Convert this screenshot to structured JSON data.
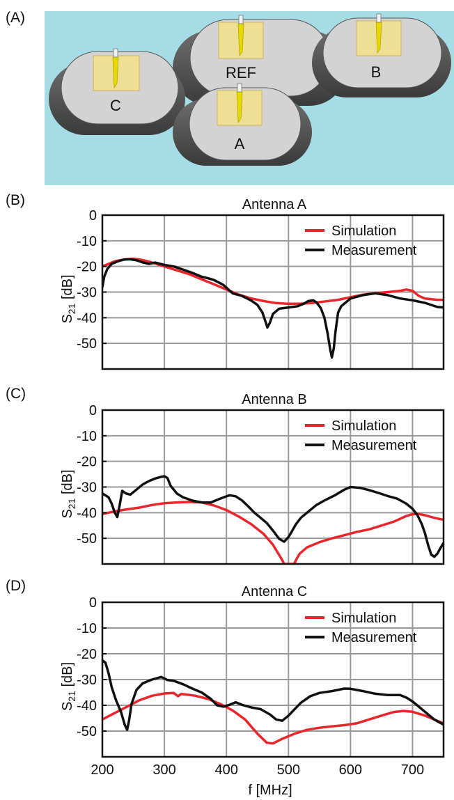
{
  "panels": {
    "a": "(A)",
    "b": "(B)",
    "c": "(C)",
    "d": "(D)"
  },
  "scene": {
    "background_color": "#a6dce6",
    "body_labels": {
      "ref": "REF",
      "a": "A",
      "b": "B",
      "c": "C"
    }
  },
  "colors": {
    "simulation": "#e8262b",
    "measurement": "#111111",
    "grid": "#9a9a9a"
  },
  "chart_data": [
    {
      "type": "line",
      "title": "Antenna A",
      "xlabel": "",
      "ylabel_main": "S",
      "ylabel_sub": "21",
      "ylabel_rest": " [dB]",
      "xlim": [
        200,
        750
      ],
      "ylim": [
        -60,
        0
      ],
      "yticks": [
        0,
        -10,
        -20,
        -30,
        -40,
        -50
      ],
      "xticks": [],
      "grid": true,
      "legend_position": "top-right",
      "series": [
        {
          "name": "Simulation",
          "color": "#e8262b",
          "x": [
            200,
            210,
            220,
            230,
            240,
            250,
            260,
            270,
            280,
            300,
            320,
            340,
            360,
            380,
            400,
            420,
            440,
            460,
            480,
            500,
            520,
            540,
            560,
            580,
            600,
            620,
            640,
            660,
            680,
            690,
            700,
            710,
            720,
            740,
            750
          ],
          "y": [
            -20,
            -19,
            -18,
            -17.5,
            -17.2,
            -17,
            -17.3,
            -17.8,
            -18.5,
            -20,
            -21.5,
            -23,
            -25,
            -27,
            -29,
            -31,
            -32.5,
            -33.5,
            -34.3,
            -34.6,
            -34.5,
            -34.2,
            -33.6,
            -33,
            -32,
            -31,
            -30.5,
            -30,
            -29.5,
            -29,
            -29.5,
            -31.5,
            -32.5,
            -33,
            -33
          ]
        },
        {
          "name": "Measurement",
          "color": "#111111",
          "x": [
            200,
            203,
            208,
            215,
            225,
            235,
            245,
            255,
            265,
            275,
            285,
            300,
            315,
            330,
            345,
            360,
            370,
            380,
            395,
            410,
            425,
            440,
            450,
            458,
            463,
            466,
            470,
            475,
            485,
            500,
            515,
            525,
            532,
            540,
            545,
            552,
            558,
            563,
            567,
            570,
            573,
            576,
            580,
            585,
            590,
            600,
            620,
            640,
            660,
            680,
            700,
            720,
            740,
            750
          ],
          "y": [
            -28,
            -24,
            -21,
            -19,
            -18,
            -17.3,
            -17.2,
            -17.6,
            -18.4,
            -19,
            -18.5,
            -19.4,
            -20,
            -21.2,
            -22.5,
            -24,
            -24.6,
            -25.3,
            -27.2,
            -30.5,
            -31.5,
            -33.3,
            -35,
            -38,
            -41.5,
            -43.8,
            -42,
            -38.5,
            -36.5,
            -36,
            -35.5,
            -34.5,
            -33.5,
            -33.2,
            -34,
            -36.2,
            -40,
            -46,
            -52,
            -55.5,
            -52,
            -45,
            -38,
            -35.5,
            -34.5,
            -32.5,
            -31.2,
            -30.5,
            -31.2,
            -32.5,
            -33.2,
            -34.2,
            -35.8,
            -36
          ]
        }
      ]
    },
    {
      "type": "line",
      "title": "Antenna B",
      "xlabel": "",
      "ylabel_main": "S",
      "ylabel_sub": "21",
      "ylabel_rest": " [dB]",
      "xlim": [
        200,
        750
      ],
      "ylim": [
        -60,
        0
      ],
      "yticks": [
        0,
        -10,
        -20,
        -30,
        -40,
        -50
      ],
      "xticks": [],
      "grid": true,
      "legend_position": "top-right",
      "series": [
        {
          "name": "Simulation",
          "color": "#e8262b",
          "x": [
            200,
            220,
            240,
            260,
            280,
            300,
            320,
            340,
            360,
            380,
            400,
            420,
            440,
            460,
            475,
            485,
            490,
            493,
            509,
            512,
            518,
            530,
            550,
            570,
            590,
            610,
            630,
            650,
            670,
            690,
            700,
            710,
            720,
            735,
            750
          ],
          "y": [
            -40.5,
            -39.5,
            -38.7,
            -38,
            -37,
            -36.3,
            -36,
            -35.8,
            -36,
            -37.2,
            -39,
            -41.5,
            -44.5,
            -48.3,
            -52.5,
            -56.5,
            -58.5,
            -60,
            -60,
            -58.5,
            -56,
            -53.5,
            -51.5,
            -50,
            -48.8,
            -47.5,
            -46.5,
            -45,
            -43.5,
            -41.3,
            -40.6,
            -40.5,
            -41,
            -42,
            -42.8
          ]
        },
        {
          "name": "Measurement",
          "color": "#111111",
          "x": [
            200,
            210,
            215,
            220,
            224,
            228,
            232,
            238,
            245,
            255,
            265,
            275,
            285,
            295,
            300,
            305,
            310,
            320,
            330,
            345,
            360,
            375,
            390,
            405,
            415,
            425,
            435,
            445,
            455,
            465,
            475,
            485,
            493,
            500,
            505,
            512,
            520,
            530,
            545,
            560,
            575,
            590,
            600,
            615,
            630,
            645,
            660,
            675,
            690,
            700,
            708,
            715,
            720,
            725,
            730,
            735,
            740,
            745,
            750
          ],
          "y": [
            -32.5,
            -34,
            -36.5,
            -40,
            -41.7,
            -37,
            -31.5,
            -32.5,
            -33,
            -31,
            -29,
            -27.7,
            -26.7,
            -26,
            -25.8,
            -26.5,
            -29.5,
            -32.5,
            -34,
            -35.3,
            -36,
            -36,
            -34.5,
            -33.2,
            -33.6,
            -35.2,
            -37.5,
            -40,
            -42,
            -44,
            -47,
            -50.2,
            -51.3,
            -49.5,
            -47.5,
            -44.5,
            -42,
            -40,
            -37,
            -35,
            -33.2,
            -31,
            -30,
            -30.3,
            -31.2,
            -32.3,
            -33.5,
            -34.5,
            -36.5,
            -38.5,
            -41,
            -44.5,
            -48,
            -52.5,
            -56.3,
            -57.2,
            -56,
            -53.8,
            -51.8
          ]
        }
      ]
    },
    {
      "type": "line",
      "title": "Antenna C",
      "xlabel": "f [MHz]",
      "ylabel_main": "S",
      "ylabel_sub": "21",
      "ylabel_rest": " [dB]",
      "xlim": [
        200,
        750
      ],
      "ylim": [
        -60,
        0
      ],
      "yticks": [
        0,
        -10,
        -20,
        -30,
        -40,
        -50
      ],
      "xticks": [
        200,
        300,
        400,
        500,
        600,
        700
      ],
      "grid": true,
      "legend_position": "top-right",
      "series": [
        {
          "name": "Simulation",
          "color": "#e8262b",
          "x": [
            200,
            220,
            240,
            260,
            280,
            300,
            315,
            322,
            327,
            335,
            350,
            370,
            390,
            410,
            430,
            450,
            465,
            475,
            490,
            510,
            530,
            550,
            570,
            590,
            610,
            630,
            650,
            670,
            685,
            700,
            720,
            740,
            750
          ],
          "y": [
            -45.5,
            -43,
            -40.5,
            -38,
            -36.3,
            -35.4,
            -35.2,
            -36.5,
            -35.6,
            -35.8,
            -36.3,
            -37.5,
            -39.5,
            -42,
            -45.5,
            -51,
            -54.5,
            -54.8,
            -53,
            -51,
            -49.5,
            -48.7,
            -48.2,
            -47.7,
            -47,
            -45.5,
            -44,
            -42.6,
            -42.2,
            -42.5,
            -44,
            -46,
            -47
          ]
        },
        {
          "name": "Measurement",
          "color": "#111111",
          "x": [
            200,
            205,
            210,
            215,
            222,
            230,
            236,
            240,
            243,
            247,
            255,
            265,
            280,
            295,
            305,
            315,
            330,
            345,
            360,
            375,
            385,
            395,
            405,
            415,
            425,
            440,
            455,
            470,
            480,
            490,
            500,
            510,
            520,
            535,
            550,
            570,
            590,
            600,
            620,
            640,
            660,
            680,
            690,
            700,
            710,
            720,
            735,
            750
          ],
          "y": [
            -22.5,
            -23.5,
            -27.5,
            -33,
            -38,
            -42.5,
            -47.5,
            -49.5,
            -46,
            -39.5,
            -34,
            -31.5,
            -30,
            -29,
            -30.2,
            -30.5,
            -31.8,
            -33.5,
            -35,
            -37.5,
            -40,
            -40.5,
            -39.8,
            -38.8,
            -39.8,
            -40.8,
            -41.5,
            -43.5,
            -45.5,
            -46,
            -44,
            -41.5,
            -39,
            -36.5,
            -35.2,
            -34.5,
            -33.5,
            -33.6,
            -34.5,
            -35.5,
            -36,
            -36,
            -37,
            -38.5,
            -40.5,
            -42.5,
            -45.5,
            -47.5
          ]
        }
      ]
    }
  ]
}
